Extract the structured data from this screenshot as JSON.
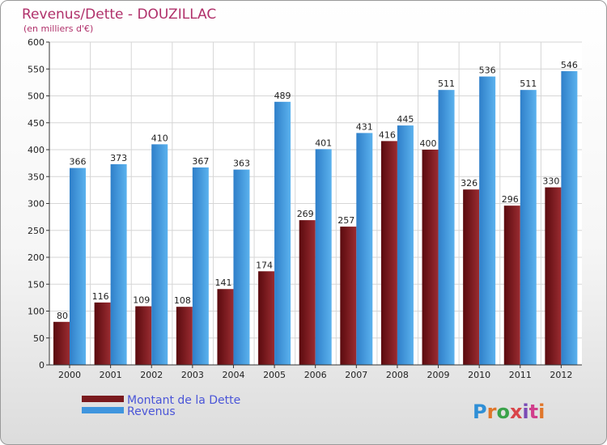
{
  "chart_data": {
    "type": "bar",
    "title": "Revenus/Dette - DOUZILLAC",
    "subtitle": "(en milliers d'€)",
    "categories": [
      "2000",
      "2001",
      "2002",
      "2003",
      "2004",
      "2005",
      "2006",
      "2007",
      "2008",
      "2009",
      "2010",
      "2011",
      "2012"
    ],
    "series": [
      {
        "name": "Montant de la Dette",
        "color": "#7a1a1e",
        "values": [
          80,
          116,
          109,
          108,
          141,
          174,
          269,
          257,
          416,
          400,
          326,
          296,
          330
        ]
      },
      {
        "name": "Revenus",
        "color": "#3f95de",
        "values": [
          366,
          373,
          410,
          367,
          363,
          489,
          401,
          431,
          445,
          511,
          536,
          511,
          546
        ]
      }
    ],
    "ylim": [
      0,
      600
    ],
    "yticks": [
      0,
      50,
      100,
      150,
      200,
      250,
      300,
      350,
      400,
      450,
      500,
      550,
      600
    ],
    "grid": true,
    "legend_position": "bottom-left"
  },
  "branding": {
    "logo_text": "Proxiti",
    "logo_colors": [
      "#2f8fd6",
      "#e0762a",
      "#3aa24a",
      "#d9454a",
      "#7a4bb5",
      "#d13f8c",
      "#e0762a"
    ]
  }
}
